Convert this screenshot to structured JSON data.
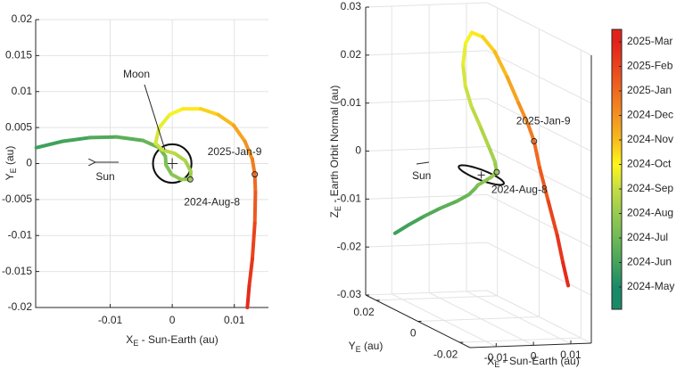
{
  "chart_data": [
    {
      "type": "line",
      "xlabel": {
        "symbol": "X",
        "sub": "E",
        "rest": " - Sun-Earth (au)"
      },
      "ylabel": {
        "symbol": "Y",
        "sub": "E",
        "rest": " (au)"
      },
      "xlim": [
        -0.022,
        0.0155
      ],
      "ylim": [
        -0.02,
        0.02
      ],
      "xticks": [
        -0.01,
        0,
        0.01
      ],
      "yticks": [
        -0.02,
        -0.015,
        -0.01,
        -0.005,
        0,
        0.005,
        0.01,
        0.015,
        0.02
      ],
      "grid": true,
      "series": [
        {
          "x": [
            -0.0219,
            -0.0176,
            -0.0133,
            -0.009,
            -0.0047,
            -0.0021,
            -0.0011,
            -0.001,
            -0.0001,
            0.0014,
            0.0029,
            0.003,
            0.0021,
            0.0004,
            -0.0016,
            -0.0027,
            -0.0021,
            -0.0004,
            0.0017,
            0.0046,
            0.0074,
            0.0099,
            0.0117,
            0.0129,
            0.0133,
            0.0134,
            0.0133,
            0.0129,
            0.0124,
            0.0121
          ],
          "y": [
            0.0022,
            0.0031,
            0.0036,
            0.0037,
            0.0032,
            0.0022,
            0.001,
            -0.0002,
            -0.0015,
            -0.0022,
            -0.0022,
            -0.0011,
            0.0004,
            0.0014,
            0.0019,
            0.0028,
            0.005,
            0.0068,
            0.0076,
            0.0076,
            0.0068,
            0.0053,
            0.0031,
            0.0006,
            -0.0015,
            -0.004,
            -0.0083,
            -0.0133,
            -0.017,
            -0.02
          ],
          "colors": [
            "#3ea15b",
            "#45a45a",
            "#52aa59",
            "#5caf58",
            "#66b457",
            "#6fb957",
            "#78bd55",
            "#82c253",
            "#8cc651",
            "#95ca50",
            "#98cb4f",
            "#a4d04c",
            "#b0d548",
            "#bcda46",
            "#c8df43",
            "#d6e63a",
            "#e6ee30",
            "#f5f325",
            "#fde81c",
            "#fbd01c",
            "#f8bb1c",
            "#f6a51e",
            "#f4911f",
            "#f17d1f",
            "#ef6a1f",
            "#ec5a1e",
            "#e9441d",
            "#e6361d",
            "#e42b1c",
            "#e3211c"
          ]
        }
      ],
      "markers": [
        {
          "label": "2024-Aug-8",
          "x": 0.0029,
          "y": -0.0022
        },
        {
          "label": "2025-Jan-9",
          "x": 0.0133,
          "y": -0.0015
        }
      ],
      "annotations": {
        "moon": "Moon",
        "sun": "Sun"
      },
      "moon_orbit_radius": 0.0031
    },
    {
      "type": "line3d",
      "xlabel": {
        "symbol": "X",
        "sub": "E",
        "rest": " - Sun-Earth (au)"
      },
      "ylabel": {
        "symbol": "Y",
        "sub": "E",
        "rest": " (au)"
      },
      "zlabel": {
        "symbol": "Z",
        "sub": "E",
        "rest": " - Earth Orbit Normal (au)"
      },
      "xlim": [
        -0.017,
        0.0155
      ],
      "ylim": [
        -0.025,
        0.025
      ],
      "zlim": [
        -0.03,
        0.03
      ],
      "xticks": [
        -0.01,
        0,
        0.01
      ],
      "yticks": [
        -0.02,
        0,
        0.02
      ],
      "zticks": [
        -0.03,
        -0.02,
        -0.01,
        0,
        0.01,
        0.02,
        0.03
      ],
      "grid": true,
      "series": [
        {
          "x": [
            -0.0219,
            -0.0176,
            -0.0133,
            -0.009,
            -0.0047,
            -0.0021,
            -0.0011,
            -0.001,
            -0.0001,
            0.0014,
            0.0029,
            0.003,
            0.0021,
            0.0004,
            -0.0016,
            -0.0027,
            -0.0021,
            -0.0004,
            0.0017,
            0.0046,
            0.0074,
            0.0099,
            0.0117,
            0.0129,
            0.0133,
            0.0134,
            0.0133,
            0.0129,
            0.0124,
            0.0121
          ],
          "y": [
            0.0022,
            0.0031,
            0.0036,
            0.0037,
            0.0032,
            0.0022,
            0.001,
            -0.0002,
            -0.0015,
            -0.0022,
            -0.0022,
            -0.0011,
            0.0004,
            0.0014,
            0.0019,
            0.0028,
            0.005,
            0.0068,
            0.0076,
            0.0076,
            0.0068,
            0.0053,
            0.0031,
            0.0006,
            -0.0015,
            -0.004,
            -0.0083,
            -0.0133,
            -0.017,
            -0.02
          ],
          "z": [
            -0.012,
            -0.0105,
            -0.009,
            -0.0075,
            -0.006,
            -0.0045,
            -0.003,
            -0.002,
            -0.001,
            0.0,
            0.001,
            0.003,
            0.006,
            0.01,
            0.014,
            0.018,
            0.022,
            0.026,
            0.028,
            0.027,
            0.024,
            0.019,
            0.014,
            0.01,
            0.007,
            0.002,
            -0.004,
            -0.01,
            -0.015,
            -0.019
          ],
          "colors": [
            "#3ea15b",
            "#45a45a",
            "#52aa59",
            "#5caf58",
            "#66b457",
            "#6fb957",
            "#78bd55",
            "#82c253",
            "#8cc651",
            "#95ca50",
            "#98cb4f",
            "#a4d04c",
            "#b0d548",
            "#bcda46",
            "#c8df43",
            "#d6e63a",
            "#e6ee30",
            "#f5f325",
            "#fde81c",
            "#fbd01c",
            "#f8bb1c",
            "#f6a51e",
            "#f4911f",
            "#f17d1f",
            "#ef6a1f",
            "#ec5a1e",
            "#e9441d",
            "#e6361d",
            "#e42b1c",
            "#e3211c"
          ]
        }
      ],
      "markers": [
        {
          "label": "2024-Aug-8",
          "x": 0.0029,
          "y": -0.0022,
          "z": 0.001
        },
        {
          "label": "2025-Jan-9",
          "x": 0.0133,
          "y": -0.0015,
          "z": 0.007
        }
      ],
      "annotations": {
        "sun": "Sun"
      },
      "moon_orbit_radius": 0.0031
    },
    {
      "type": "colorbar",
      "categories": [
        "2025-Mar",
        "2025-Feb",
        "2025-Jan",
        "2024-Dec",
        "2024-Nov",
        "2024-Oct",
        "2024-Sep",
        "2024-Aug",
        "2024-Jul",
        "2024-Jun",
        "2024-May"
      ],
      "colors": [
        "#e3211c",
        "#e9441d",
        "#ef6a1f",
        "#f4911f",
        "#f8bb1c",
        "#fff71a",
        "#c4dd45",
        "#98cb4f",
        "#6fb957",
        "#45a45a",
        "#198a68"
      ]
    }
  ]
}
